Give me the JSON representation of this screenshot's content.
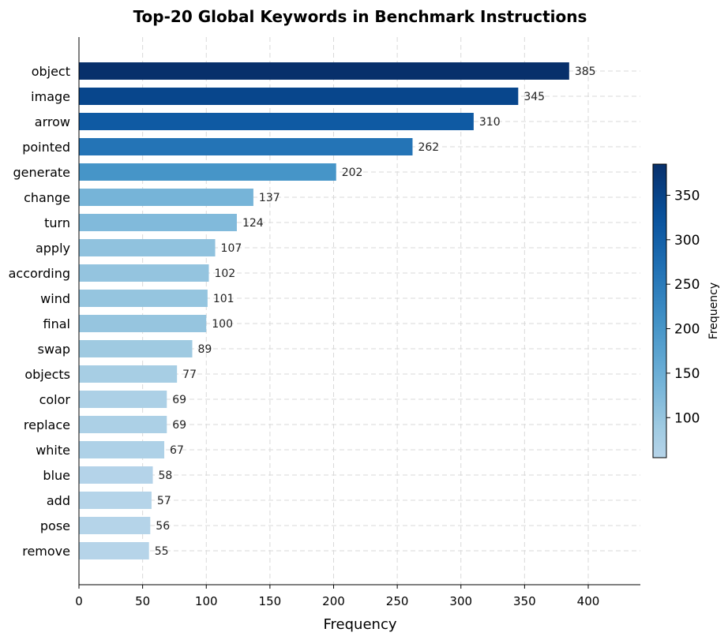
{
  "chart_data": {
    "type": "bar",
    "orientation": "horizontal",
    "title": "Top-20 Global Keywords in Benchmark Instructions",
    "xlabel": "Frequency",
    "ylabel": "",
    "xlim": [
      0,
      440
    ],
    "xticks": [
      0,
      50,
      100,
      150,
      200,
      250,
      300,
      350,
      400
    ],
    "grid": true,
    "categories": [
      "object",
      "image",
      "arrow",
      "pointed",
      "generate",
      "change",
      "turn",
      "apply",
      "according",
      "wind",
      "final",
      "swap",
      "objects",
      "color",
      "replace",
      "white",
      "blue",
      "add",
      "pose",
      "remove"
    ],
    "values": [
      385,
      345,
      310,
      262,
      202,
      137,
      124,
      107,
      102,
      101,
      100,
      89,
      77,
      69,
      69,
      67,
      58,
      57,
      56,
      55
    ],
    "colorbar": {
      "label": "Frequency",
      "range": [
        55,
        385
      ],
      "ticks": [
        100,
        150,
        200,
        250,
        300,
        350
      ],
      "colormap": [
        "#f7fbff",
        "#deebf7",
        "#c6dbef",
        "#9ecae1",
        "#6baed6",
        "#4292c6",
        "#2171b5",
        "#08519c",
        "#08306b"
      ]
    }
  }
}
